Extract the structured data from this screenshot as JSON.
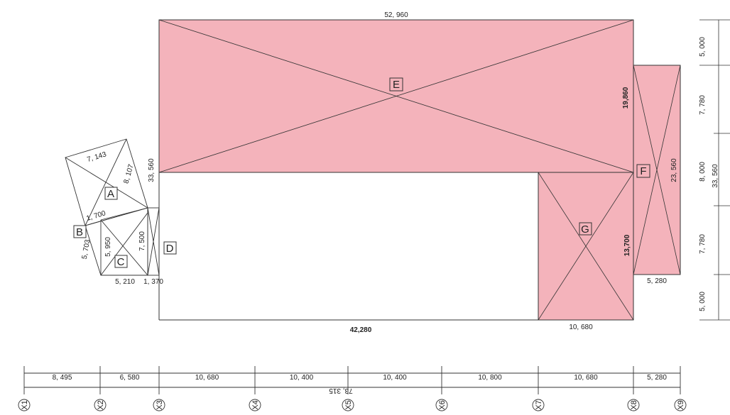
{
  "colors": {
    "fill": "#f4b3bb",
    "line": "#333333"
  },
  "zones": {
    "a": "A",
    "b": "B",
    "c": "C",
    "d": "D",
    "e": "E",
    "f": "F",
    "g": "G"
  },
  "dims": {
    "e_top": "52, 960",
    "e_left": "33, 560",
    "e_right": "19,860",
    "g_right": "13,700",
    "g_bottom": "10, 680",
    "bottom": "42,280",
    "f_right": "23, 560",
    "f_bottom": "5, 280",
    "a_top": "7, 143",
    "a_right": "8, 107",
    "a_bottom": "1, 700",
    "b_left": "5, 703",
    "c_mid": "5, 950",
    "c_right": "7, 500",
    "c_bottom1": "5, 210",
    "c_bottom2": "1, 370",
    "right_chain": [
      "5, 000",
      "7, 780",
      "8, 000",
      "7, 780",
      "5, 000"
    ],
    "right_total": "33, 560",
    "axis_segments": [
      "8, 495",
      "6, 580",
      "10, 680",
      "10, 400",
      "10, 400",
      "10, 800",
      "10, 680",
      "5, 280"
    ],
    "axis_total": "73, 315"
  },
  "axes": [
    "X1",
    "X2",
    "X3",
    "X4",
    "X5",
    "X6",
    "X7",
    "X8",
    "X9"
  ]
}
